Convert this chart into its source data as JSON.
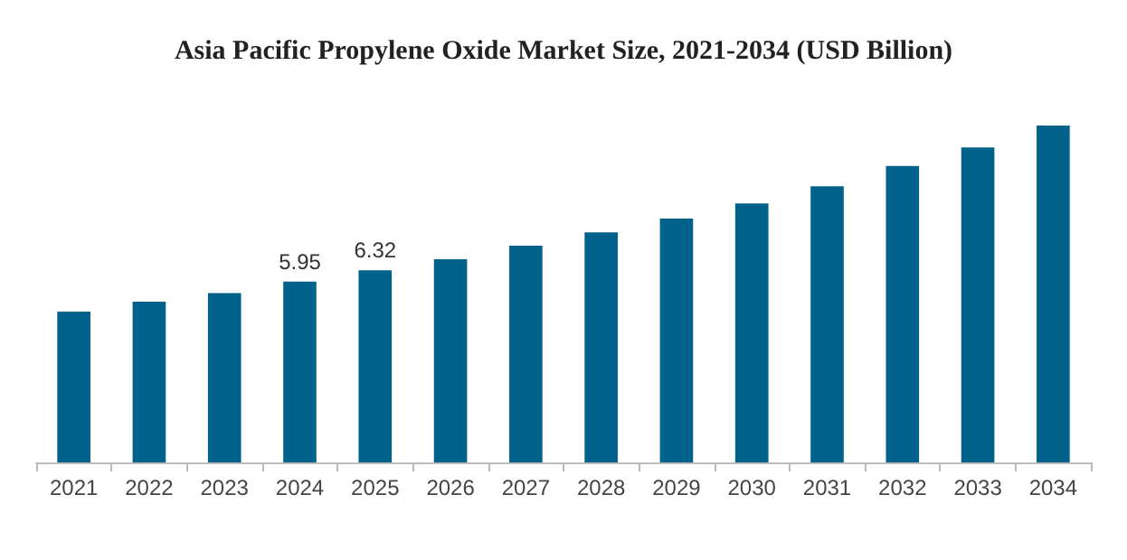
{
  "chart_data": {
    "type": "bar",
    "title": "Asia Pacific Propylene Oxide Market Size, 2021-2034 (USD Billion)",
    "categories": [
      "2021",
      "2022",
      "2023",
      "2024",
      "2025",
      "2026",
      "2027",
      "2028",
      "2029",
      "2030",
      "2031",
      "2032",
      "2033",
      "2034"
    ],
    "values": [
      4.96,
      5.29,
      5.57,
      5.95,
      6.32,
      6.68,
      7.13,
      7.57,
      8.02,
      8.52,
      9.08,
      9.75,
      10.36,
      11.08
    ],
    "value_labels": [
      null,
      null,
      null,
      "5.95",
      "6.32",
      null,
      null,
      null,
      null,
      null,
      null,
      null,
      null,
      null
    ],
    "color": "#00628b"
  }
}
